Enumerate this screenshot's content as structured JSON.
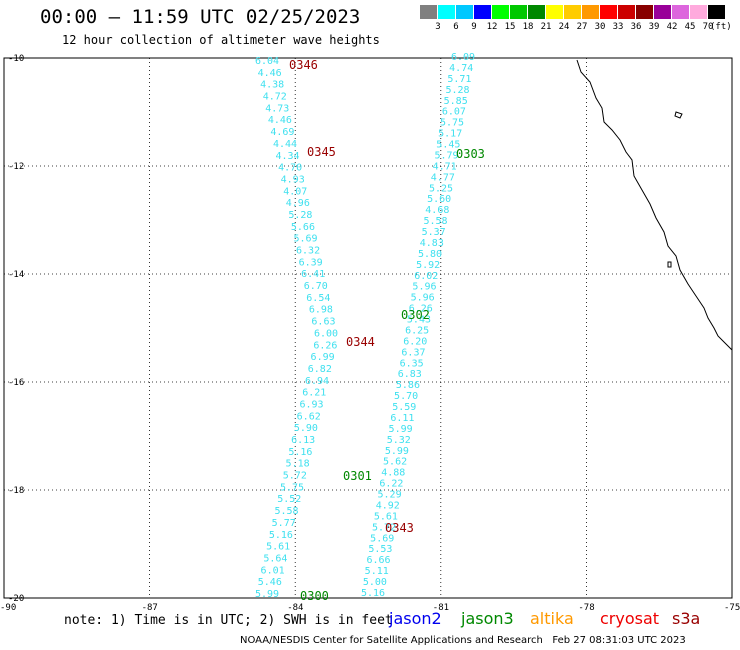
{
  "title": "00:00 – 11:59 UTC 02/25/2023",
  "subtitle": "12 hour collection of altimeter wave heights",
  "colorbar": {
    "unit": "(ft)",
    "labels": [
      "3",
      "6",
      "9",
      "12",
      "15",
      "18",
      "21",
      "24",
      "27",
      "30",
      "33",
      "36",
      "39",
      "42",
      "45",
      "70"
    ],
    "colors": [
      "#808080",
      "#00ffff",
      "#00c8ff",
      "#0000ff",
      "#00ff00",
      "#00c800",
      "#008800",
      "#ffff00",
      "#ffcc00",
      "#ff9900",
      "#ff0000",
      "#cc0000",
      "#880000",
      "#990099",
      "#dd66dd",
      "#ffaadd",
      "#000000"
    ]
  },
  "map": {
    "lon_range": [
      -90,
      -75
    ],
    "lat_range": [
      -20,
      -10
    ],
    "lat_ticks": [
      "-10",
      "-12",
      "-14",
      "-16",
      "-18",
      "-20"
    ],
    "lon_ticks": [
      "-87",
      "-84",
      "-81",
      "-78",
      "-75"
    ],
    "corner_label": "-90"
  },
  "tracks": [
    {
      "values": [
        "6.04",
        "4.46",
        "4.38",
        "4.72",
        "4.73",
        "4.46",
        "4.69",
        "4.44",
        "4.34",
        "4.70",
        "4.93",
        "4.07",
        "4.96",
        "5.28",
        "5.66",
        "5.69",
        "6.32",
        "6.39",
        "6.41",
        "6.70",
        "6.54",
        "6.98",
        "6.63",
        "6.00",
        "6.26",
        "6.99",
        "6.82",
        "6.94",
        "6.21",
        "6.93",
        "6.62",
        "5.90",
        "6.13",
        "5.16",
        "5.18",
        "5.72",
        "5.75",
        "5.52",
        "5.58",
        "5.77",
        "5.16",
        "5.61",
        "5.64",
        "6.01",
        "5.46",
        "5.99"
      ]
    },
    {
      "values": [
        "6.09",
        "4.74",
        "5.71",
        "5.28",
        "5.85",
        "6.07",
        "5.75",
        "5.17",
        "5.45",
        "5.79",
        "4.71",
        "4.77",
        "5.25",
        "5.60",
        "4.68",
        "5.58",
        "5.37",
        "4.83",
        "5.80",
        "5.92",
        "6.02",
        "5.96",
        "5.96",
        "6.26",
        "5.43",
        "6.25",
        "6.20",
        "6.37",
        "6.35",
        "6.83",
        "5.86",
        "5.70",
        "5.59",
        "6.11",
        "5.99",
        "5.32",
        "5.99",
        "5.62",
        "4.88",
        "6.22",
        "5.29",
        "4.92",
        "5.61",
        "5.72",
        "5.69",
        "5.53",
        "6.66",
        "5.11",
        "5.00",
        "5.16"
      ]
    }
  ],
  "pass_labels": [
    {
      "text": "0346",
      "color": "#990000"
    },
    {
      "text": "0345",
      "color": "#990000"
    },
    {
      "text": "0344",
      "color": "#990000"
    },
    {
      "text": "0343",
      "color": "#990000"
    },
    {
      "text": "0303",
      "color": "#008800"
    },
    {
      "text": "0302",
      "color": "#008800"
    },
    {
      "text": "0301",
      "color": "#008800"
    },
    {
      "text": "0300",
      "color": "#008800"
    }
  ],
  "note": "note: 1) Time is in UTC; 2) SWH is in feet",
  "legend": [
    {
      "name": "jason2",
      "color": "#0000ee"
    },
    {
      "name": "jason3",
      "color": "#008800"
    },
    {
      "name": "altika",
      "color": "#ff9900"
    },
    {
      "name": "cryosat",
      "color": "#ee0000"
    },
    {
      "name": "s3a",
      "color": "#990000"
    }
  ],
  "credit": "NOAA/NESDIS Center for Satellite Applications and Research   Feb 27 08:31:03 UTC 2023"
}
